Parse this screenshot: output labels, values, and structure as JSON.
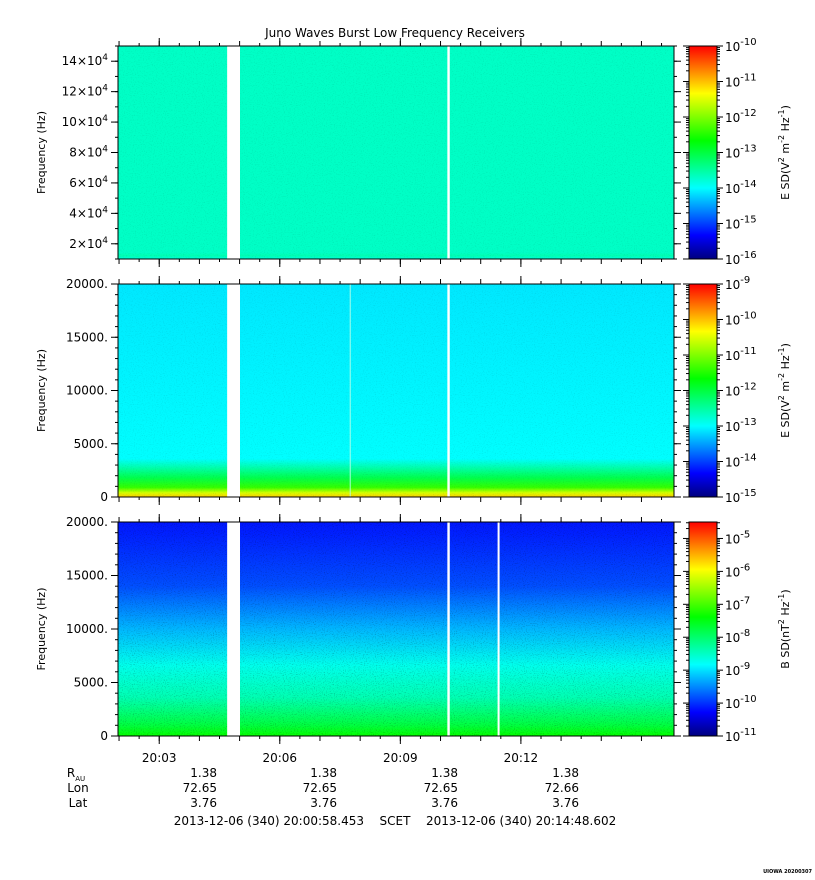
{
  "title": "Juno Waves Burst Low Frequency Receivers",
  "stamp": "UIOWA 20200307",
  "time_range": {
    "start_label": "2013-12-06 (340) 20:00:58.453",
    "scet_label": "SCET",
    "end_label": "2013-12-06 (340) 20:14:48.602"
  },
  "ephemeris": {
    "row_labels": [
      "R",
      "Lon",
      "Lat"
    ],
    "r_subscript": "AU",
    "columns": [
      {
        "time": "20:03",
        "r": "1.38",
        "lon": "72.65",
        "lat": "3.76"
      },
      {
        "time": "20:06",
        "r": "1.38",
        "lon": "72.65",
        "lat": "3.76"
      },
      {
        "time": "20:09",
        "r": "1.38",
        "lon": "72.65",
        "lat": "3.76"
      },
      {
        "time": "20:12",
        "r": "1.38",
        "lon": "72.66",
        "lat": "3.76"
      }
    ]
  },
  "colorscale": [
    "#00007f",
    "#0000ff",
    "#0080ff",
    "#00ffff",
    "#00ff80",
    "#00ff00",
    "#80ff00",
    "#ffff00",
    "#ff8000",
    "#ff0000"
  ],
  "chart_data": [
    {
      "type": "heatmap",
      "name": "panel-1",
      "title": "Juno Waves Burst Low Frequency Receivers",
      "x_range_minutes": [
        0.974,
        14.81
      ],
      "x_ticks": [
        {
          "minutes": 2.0,
          "label": "20:03"
        },
        {
          "minutes": 5.0,
          "label": "20:06"
        },
        {
          "minutes": 8.0,
          "label": "20:09"
        },
        {
          "minutes": 11.0,
          "label": "20:12"
        }
      ],
      "ylabel": "Frequency (Hz)",
      "ylim": [
        10000,
        150000
      ],
      "y_ticks": [
        {
          "value": 20000,
          "mantissa": "2",
          "exp": "4"
        },
        {
          "value": 40000,
          "mantissa": "4",
          "exp": "4"
        },
        {
          "value": 60000,
          "mantissa": "6",
          "exp": "4"
        },
        {
          "value": 80000,
          "mantissa": "8",
          "exp": "4"
        },
        {
          "value": 100000,
          "mantissa": "10",
          "exp": "4"
        },
        {
          "value": 120000,
          "mantissa": "12",
          "exp": "4"
        },
        {
          "value": 140000,
          "mantissa": "14",
          "exp": "4"
        }
      ],
      "colorbar": {
        "label": "E SD",
        "unit_base": "V",
        "unit_rest": " m",
        "unit_tail": " Hz",
        "unit_close": ")",
        "log_range": [
          -16,
          -10
        ],
        "ticks": [
          "-16",
          "-15",
          "-14",
          "-13",
          "-12",
          "-11",
          "-10"
        ]
      },
      "field_level": -13.7,
      "gaps_minutes": [
        [
          3.69,
          4.01
        ],
        [
          9.17,
          9.23
        ]
      ],
      "features": [
        "uniform green spectrum, faint cyan noise band at lowest frequencies"
      ]
    },
    {
      "type": "heatmap",
      "name": "panel-2",
      "x_range_minutes": [
        0.974,
        14.81
      ],
      "x_ticks": [
        {
          "minutes": 2.0,
          "label": "20:03"
        },
        {
          "minutes": 5.0,
          "label": "20:06"
        },
        {
          "minutes": 8.0,
          "label": "20:09"
        },
        {
          "minutes": 11.0,
          "label": "20:12"
        }
      ],
      "ylabel": "Frequency (Hz)",
      "ylim": [
        0,
        20000
      ],
      "y_ticks": [
        {
          "value": 0,
          "label": "0"
        },
        {
          "value": 5000,
          "label": "5000."
        },
        {
          "value": 10000,
          "label": "10000."
        },
        {
          "value": 15000,
          "label": "15000."
        },
        {
          "value": 20000,
          "label": "20000."
        }
      ],
      "colorbar": {
        "label": "E SD",
        "unit_base": "V",
        "unit_rest": " m",
        "unit_tail": " Hz",
        "unit_close": ")",
        "log_range": [
          -15,
          -9
        ],
        "ticks": [
          "-15",
          "-14",
          "-13",
          "-12",
          "-11",
          "-10",
          "-9"
        ]
      },
      "field_level": -13.0,
      "gaps_minutes": [
        [
          3.69,
          4.01
        ],
        [
          9.17,
          9.23
        ]
      ],
      "thin_lines_minutes": [
        6.74
      ],
      "features": [
        "enhanced emission below ~1000 Hz (yellow-green band)"
      ]
    },
    {
      "type": "heatmap",
      "name": "panel-3",
      "x_range_minutes": [
        0.974,
        14.81
      ],
      "x_ticks": [
        {
          "minutes": 2.0,
          "label": "20:03"
        },
        {
          "minutes": 5.0,
          "label": "20:06"
        },
        {
          "minutes": 8.0,
          "label": "20:09"
        },
        {
          "minutes": 11.0,
          "label": "20:12"
        }
      ],
      "ylabel": "Frequency (Hz)",
      "ylim": [
        0,
        20000
      ],
      "y_ticks": [
        {
          "value": 0,
          "label": "0"
        },
        {
          "value": 5000,
          "label": "5000."
        },
        {
          "value": 10000,
          "label": "10000."
        },
        {
          "value": 15000,
          "label": "15000."
        },
        {
          "value": 20000,
          "label": "20000."
        }
      ],
      "colorbar": {
        "label": "B SD",
        "unit_base": "nT",
        "unit_rest": "",
        "unit_tail": " Hz",
        "unit_close": ")",
        "log_range": [
          -11,
          -4.5
        ],
        "ticks": [
          "-11",
          "-10",
          "-9",
          "-8",
          "-7",
          "-6",
          "-5"
        ]
      },
      "field_level": -10.2,
      "gaps_minutes": [
        [
          3.69,
          4.01
        ],
        [
          9.17,
          9.23
        ],
        [
          10.42,
          10.45
        ]
      ],
      "features": [
        "blue at high frequency grading to cyan/green below ~6000 Hz"
      ]
    }
  ]
}
